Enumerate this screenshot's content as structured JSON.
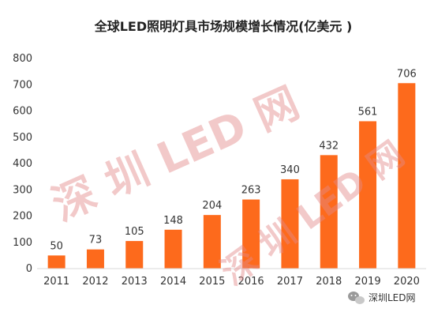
{
  "chart_data": {
    "type": "bar",
    "title": "全球LED照明灯具市场规模增长情况(亿美元 )",
    "categories": [
      "2011",
      "2012",
      "2013",
      "2014",
      "2015",
      "2016",
      "2017",
      "2018",
      "2019",
      "2020"
    ],
    "values": [
      50,
      73,
      105,
      148,
      204,
      263,
      340,
      432,
      561,
      706
    ],
    "ylim": [
      0,
      800
    ],
    "yticks": [
      0,
      100,
      200,
      300,
      400,
      500,
      600,
      700,
      800
    ],
    "bar_color": "#fd6a1c",
    "grid": false,
    "legend": "none"
  },
  "watermark": {
    "text_1": "深 圳 LED 网",
    "text_2": "深 圳 LED 网"
  },
  "brand": {
    "icon": "wechat-icon",
    "label": "深圳LED网"
  }
}
